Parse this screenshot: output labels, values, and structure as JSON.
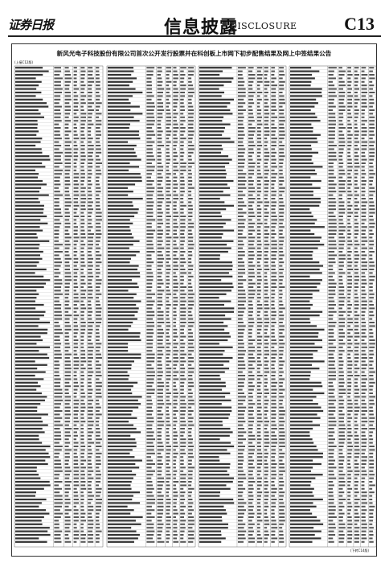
{
  "header": {
    "masthead": "证券日报",
    "section": "信息披露",
    "section_en": "DISCLOSURE",
    "page": "C13"
  },
  "article": {
    "title": "新风光电子科技股份有限公司首次公开发行股票并在科创板上市网下初步配售结果及网上中签结果公告",
    "continued_from": "(上接C12版)",
    "continued_to": "(下转C14版)"
  }
}
